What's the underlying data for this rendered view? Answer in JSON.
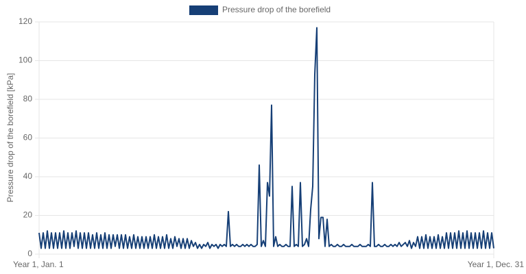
{
  "chart_data": {
    "type": "line",
    "y_label": "Pressure drop of the borefield [kPa]",
    "ylim": [
      0,
      120
    ],
    "yticks": [
      0,
      20,
      40,
      60,
      80,
      100,
      120
    ],
    "grid": true,
    "legend": "top",
    "categories": [
      "Year 1, Jan. 1",
      null,
      null,
      null,
      null,
      null,
      null,
      null,
      null,
      null,
      null,
      null,
      null,
      null,
      null,
      null,
      null,
      null,
      null,
      null,
      null,
      null,
      null,
      null,
      null,
      null,
      null,
      null,
      null,
      null,
      null,
      null,
      null,
      null,
      null,
      null,
      null,
      null,
      null,
      null,
      null,
      null,
      null,
      null,
      null,
      null,
      null,
      null,
      null,
      null,
      null,
      null,
      null,
      null,
      null,
      null,
      null,
      null,
      null,
      null,
      null,
      null,
      null,
      null,
      null,
      null,
      null,
      null,
      null,
      null,
      null,
      null,
      null,
      null,
      null,
      null,
      null,
      null,
      null,
      null,
      null,
      null,
      null,
      null,
      null,
      null,
      null,
      null,
      null,
      null,
      null,
      null,
      null,
      null,
      null,
      null,
      null,
      null,
      null,
      null,
      null,
      null,
      null,
      null,
      null,
      null,
      null,
      null,
      null,
      null,
      null,
      null,
      null,
      null,
      null,
      null,
      null,
      null,
      null,
      null,
      null,
      null,
      null,
      null,
      null,
      null,
      null,
      null,
      null,
      null,
      null,
      null,
      null,
      null,
      null,
      null,
      null,
      null,
      null,
      null,
      null,
      null,
      null,
      null,
      null,
      null,
      null,
      null,
      null,
      null,
      null,
      null,
      null,
      null,
      null,
      null,
      null,
      null,
      null,
      null,
      null,
      null,
      null,
      null,
      null,
      null,
      null,
      null,
      null,
      null,
      null,
      null,
      null,
      null,
      null,
      null,
      null,
      null,
      null,
      null,
      null,
      null,
      null,
      null,
      null,
      null,
      null,
      null,
      null,
      null,
      null,
      null,
      null,
      null,
      null,
      null,
      null,
      null,
      null,
      null,
      null,
      null,
      null,
      null,
      null,
      null,
      null,
      null,
      null,
      null,
      null,
      null,
      null,
      null,
      null,
      null,
      null,
      null,
      null,
      null,
      null,
      "Year 1, Dec. 31"
    ],
    "series": [
      {
        "name": "Pressure drop of the borefield",
        "color": "#163f76",
        "values": [
          11,
          3,
          11,
          3,
          12,
          3,
          11,
          3,
          11,
          3,
          11,
          3,
          12,
          3,
          11,
          3,
          11,
          4,
          12,
          3,
          11,
          3,
          11,
          3,
          11,
          3,
          10,
          3,
          11,
          3,
          10,
          3,
          11,
          3,
          10,
          3,
          10,
          4,
          10,
          3,
          10,
          3,
          10,
          3,
          9,
          3,
          10,
          3,
          9,
          3,
          9,
          3,
          9,
          3,
          9,
          3,
          10,
          3,
          9,
          3,
          9,
          3,
          10,
          3,
          8,
          3,
          9,
          4,
          8,
          3,
          8,
          3,
          8,
          3,
          7,
          4,
          6,
          3,
          5,
          3,
          5,
          4,
          6,
          3,
          5,
          4,
          5,
          3,
          5,
          4,
          5,
          4,
          22,
          4,
          5,
          4,
          5,
          4,
          4,
          5,
          4,
          5,
          4,
          5,
          4,
          4,
          5,
          46,
          4,
          7,
          4,
          37,
          30,
          77,
          4,
          9,
          4,
          5,
          4,
          4,
          5,
          4,
          4,
          35,
          4,
          5,
          4,
          37,
          4,
          5,
          8,
          4,
          23,
          35,
          93,
          117,
          8,
          19,
          19,
          4,
          18,
          4,
          5,
          4,
          4,
          5,
          4,
          4,
          5,
          4,
          4,
          4,
          5,
          4,
          4,
          4,
          5,
          4,
          4,
          4,
          5,
          4,
          37,
          4,
          4,
          5,
          4,
          4,
          5,
          4,
          4,
          5,
          4,
          5,
          4,
          6,
          4,
          5,
          6,
          4,
          7,
          3,
          6,
          4,
          9,
          3,
          9,
          3,
          10,
          3,
          9,
          3,
          9,
          3,
          10,
          3,
          9,
          3,
          11,
          3,
          11,
          3,
          11,
          3,
          12,
          3,
          11,
          3,
          12,
          3,
          11,
          3,
          11,
          3,
          11,
          3,
          12,
          3,
          11,
          3,
          11,
          3
        ]
      }
    ]
  }
}
